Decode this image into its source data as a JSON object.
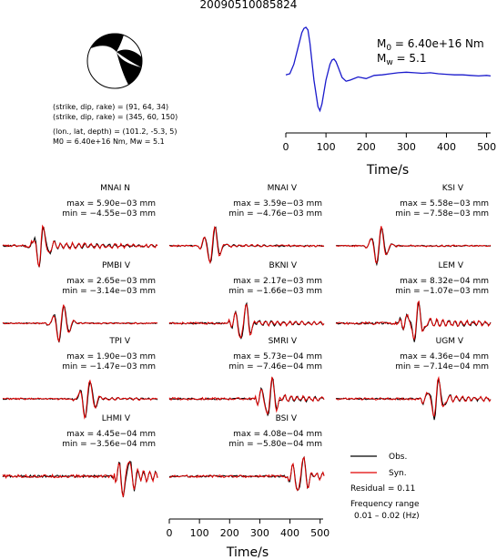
{
  "title": "20090510085824",
  "colors": {
    "observed": "#000000",
    "synthetic": "#e00000",
    "stf": "#1a1acc",
    "beachball_fill": "#000000"
  },
  "beachball": {
    "mechanisms": [
      {
        "strike": 91,
        "dip": 64,
        "rake": 34
      },
      {
        "strike": 345,
        "dip": 60,
        "rake": 150
      }
    ]
  },
  "info": {
    "line1": "(strike, dip, rake) = (91, 64, 34)",
    "line2": "(strike, dip, rake) = (345, 60, 150)",
    "line3": "(lon., lat, depth) = (101.2, -5.3, 5)",
    "line4": "M0 = 6.40e+16 Nm, Mw = 5.1"
  },
  "moment_label": {
    "m0_sym": "M",
    "m0_sub": "0",
    "m0_val": " = 6.40e+16 Nm",
    "mw_sym": "M",
    "mw_sub": "w",
    "mw_val": " = 5.1"
  },
  "legend": {
    "obs": "Obs.",
    "syn": "Syn.",
    "residual": "Residual = 0.11",
    "freq_title": "Frequency range",
    "freq_range": "0.01 – 0.02 (Hz)"
  },
  "chart_data": [
    {
      "type": "line",
      "name": "source-time-function",
      "xlabel": "Time/s",
      "xlim": [
        0,
        510
      ],
      "xticks": [
        0,
        100,
        200,
        300,
        400,
        500
      ],
      "x": [
        0,
        10,
        20,
        30,
        40,
        45,
        50,
        55,
        60,
        70,
        80,
        85,
        90,
        100,
        110,
        115,
        120,
        125,
        130,
        140,
        150,
        160,
        180,
        200,
        220,
        240,
        260,
        280,
        300,
        320,
        340,
        360,
        380,
        400,
        420,
        440,
        460,
        480,
        500,
        510
      ],
      "y": [
        0.1,
        0.12,
        0.3,
        0.6,
        0.9,
        0.98,
        1.0,
        0.95,
        0.7,
        0.0,
        -0.5,
        -0.58,
        -0.45,
        0.0,
        0.3,
        0.38,
        0.4,
        0.35,
        0.25,
        0.05,
        -0.02,
        0.0,
        0.06,
        0.03,
        0.09,
        0.1,
        0.12,
        0.14,
        0.15,
        0.14,
        0.13,
        0.14,
        0.12,
        0.11,
        0.1,
        0.1,
        0.09,
        0.08,
        0.09,
        0.08
      ]
    },
    {
      "type": "line",
      "name": "waveform-fits",
      "xlabel": "Time/s",
      "xlim": [
        0,
        510
      ],
      "xticks": [
        0,
        100,
        200,
        300,
        400,
        500
      ],
      "stations": [
        {
          "label": "MNAI N",
          "max": "max = 5.90e−03 mm",
          "min": "min = −4.55e−03 mm",
          "seed": 11,
          "onset": 0.18,
          "peak": 0.25,
          "noise": 0.35
        },
        {
          "label": "MNAI V",
          "max": "max = 3.59e−03 mm",
          "min": "min = −4.76e−03 mm",
          "seed": 23,
          "onset": 0.18,
          "peak": 0.28,
          "noise": 0.12
        },
        {
          "label": "KSI V",
          "max": "max = 5.58e−03 mm",
          "min": "min = −7.58e−03 mm",
          "seed": 37,
          "onset": 0.2,
          "peak": 0.28,
          "noise": 0.05
        },
        {
          "label": "PMBI V",
          "max": "max = 2.65e−03 mm",
          "min": "min = −3.14e−03 mm",
          "seed": 41,
          "onset": 0.28,
          "peak": 0.38,
          "noise": 0.06
        },
        {
          "label": "BKNI V",
          "max": "max = 2.17e−03 mm",
          "min": "min = −1.66e−03 mm",
          "seed": 53,
          "onset": 0.38,
          "peak": 0.48,
          "noise": 0.3
        },
        {
          "label": "LEM V",
          "max": "max = 8.32e−04 mm",
          "min": "min = −1.07e−03 mm",
          "seed": 67,
          "onset": 0.4,
          "peak": 0.52,
          "noise": 0.45
        },
        {
          "label": "TPI V",
          "max": "max = 1.90e−03 mm",
          "min": "min = −1.47e−03 mm",
          "seed": 71,
          "onset": 0.45,
          "peak": 0.55,
          "noise": 0.12
        },
        {
          "label": "SMRI V",
          "max": "max = 5.73e−04 mm",
          "min": "min = −7.46e−04 mm",
          "seed": 83,
          "onset": 0.55,
          "peak": 0.65,
          "noise": 0.35
        },
        {
          "label": "UGM V",
          "max": "max = 4.36e−04 mm",
          "min": "min = −7.14e−04 mm",
          "seed": 97,
          "onset": 0.55,
          "peak": 0.65,
          "noise": 0.3
        },
        {
          "label": "LHMI V",
          "max": "max = 4.45e−04 mm",
          "min": "min = −3.56e−04 mm",
          "seed": 101,
          "onset": 0.72,
          "peak": 0.8,
          "noise": 0.6
        },
        {
          "label": "BSI V",
          "max": "max = 4.08e−04 mm",
          "min": "min = −5.80e−04 mm",
          "seed": 113,
          "onset": 0.76,
          "peak": 0.85,
          "noise": 0.4
        }
      ]
    }
  ]
}
